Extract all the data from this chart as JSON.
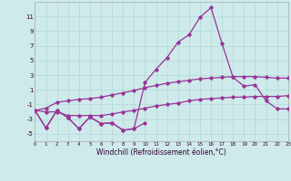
{
  "xlabel": "Windchill (Refroidissement éolien,°C)",
  "background_color": "#ceeaea",
  "grid_color": "#b0d8d8",
  "line_color": "#993399",
  "x_all": [
    0,
    1,
    2,
    3,
    4,
    5,
    6,
    7,
    8,
    9,
    10,
    11,
    12,
    13,
    14,
    15,
    16,
    17,
    18,
    19,
    20,
    21,
    22,
    23
  ],
  "line_main": [
    -1.8,
    -4.2,
    -1.8,
    -2.8,
    -4.3,
    -2.7,
    -3.6,
    -3.5,
    -4.5,
    -4.3,
    2.0,
    3.8,
    5.4,
    7.5,
    8.5,
    10.9,
    12.2,
    7.3,
    2.7,
    1.5,
    1.7,
    -0.5,
    -1.6,
    -1.6
  ],
  "line_mid": [
    -1.8,
    -1.5,
    -0.7,
    -0.5,
    -0.3,
    -0.2,
    0.0,
    0.3,
    0.6,
    0.9,
    1.3,
    1.6,
    1.9,
    2.1,
    2.3,
    2.5,
    2.6,
    2.7,
    2.8,
    2.8,
    2.8,
    2.7,
    2.6,
    2.6
  ],
  "line_low": [
    -1.8,
    -2.0,
    -2.0,
    -2.5,
    -2.5,
    -2.5,
    -2.5,
    -2.3,
    -2.0,
    -1.8,
    -1.5,
    -1.2,
    -1.0,
    -0.8,
    -0.5,
    -0.3,
    -0.2,
    -0.1,
    0.0,
    0.0,
    0.1,
    0.1,
    0.1,
    0.2
  ],
  "jagged_x": [
    0,
    1,
    2,
    3,
    4,
    5,
    6,
    7,
    8,
    9,
    10
  ],
  "jagged_y": [
    -1.8,
    -4.2,
    -1.8,
    -2.8,
    -4.3,
    -2.7,
    -3.6,
    -3.5,
    -4.5,
    -4.3,
    -3.5
  ],
  "ylim": [
    -6,
    13
  ],
  "yticks": [
    -5,
    -3,
    -1,
    1,
    3,
    5,
    7,
    9,
    11
  ],
  "xlim": [
    0,
    23
  ],
  "xticks": [
    0,
    1,
    2,
    3,
    4,
    5,
    6,
    7,
    8,
    9,
    10,
    11,
    12,
    13,
    14,
    15,
    16,
    17,
    18,
    19,
    20,
    21,
    22,
    23
  ]
}
